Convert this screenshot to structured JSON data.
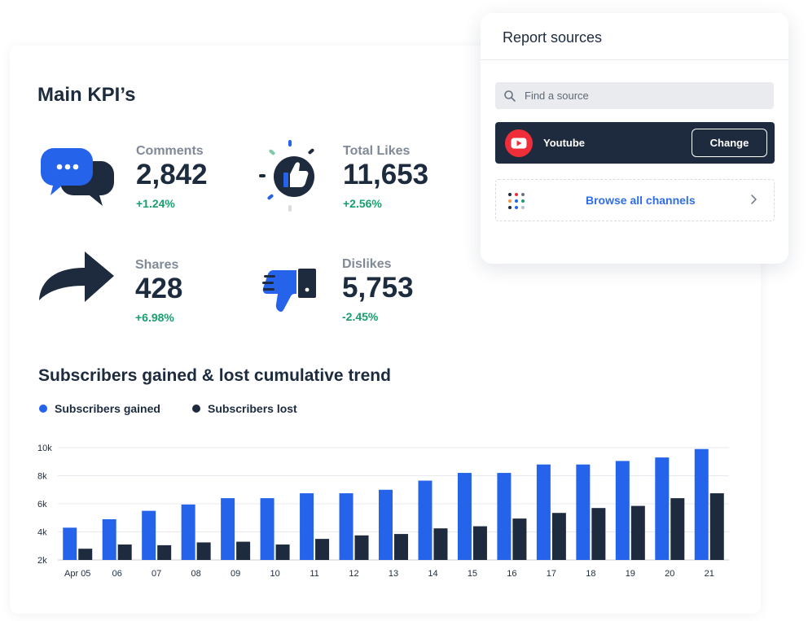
{
  "main": {
    "kpi_title": "Main KPI’s",
    "kpis": [
      {
        "label": "Comments",
        "value": "2,842",
        "delta": "+1.24%"
      },
      {
        "label": "Total Likes",
        "value": "11,653",
        "delta": "+2.56%"
      },
      {
        "label": "Shares",
        "value": "428",
        "delta": "+6.98%"
      },
      {
        "label": "Dislikes",
        "value": "5,753",
        "delta": "-2.45%"
      }
    ],
    "icons": [
      "speech-bubbles-icon",
      "thumbs-up-icon",
      "share-arrow-icon",
      "thumbs-down-icon"
    ]
  },
  "trend": {
    "title": "Subscribers gained & lost cumulative trend",
    "legend": [
      {
        "label": "Subscribers gained",
        "color": "#2563eb"
      },
      {
        "label": "Subscribers lost",
        "color": "#1e2b3e"
      }
    ]
  },
  "chart_data": {
    "type": "bar",
    "categories": [
      "Apr 05",
      "06",
      "07",
      "08",
      "09",
      "10",
      "11",
      "12",
      "13",
      "14",
      "15",
      "16",
      "17",
      "18",
      "19",
      "20",
      "21"
    ],
    "series": [
      {
        "name": "Subscribers gained",
        "color": "#2563eb",
        "values": [
          4300,
          4900,
          5500,
          5950,
          6400,
          6400,
          6750,
          6750,
          7000,
          7650,
          8200,
          8200,
          8800,
          8800,
          9050,
          9300,
          9900
        ]
      },
      {
        "name": "Subscribers lost",
        "color": "#1e2b3e",
        "values": [
          2800,
          3100,
          3050,
          3250,
          3300,
          3100,
          3500,
          3750,
          3850,
          4250,
          4400,
          4950,
          5350,
          5700,
          5850,
          6400,
          6750
        ]
      }
    ],
    "y_ticks": [
      "2k",
      "4k",
      "6k",
      "8k",
      "10k"
    ],
    "y_tick_values": [
      2000,
      4000,
      6000,
      8000,
      10000
    ],
    "ylim": [
      2000,
      10000
    ],
    "grid": true,
    "legend_position": "top-left"
  },
  "panel": {
    "title": "Report sources",
    "search_placeholder": "Find a source",
    "source_name": "Youtube",
    "change_label": "Change",
    "browse_label": "Browse all channels"
  }
}
